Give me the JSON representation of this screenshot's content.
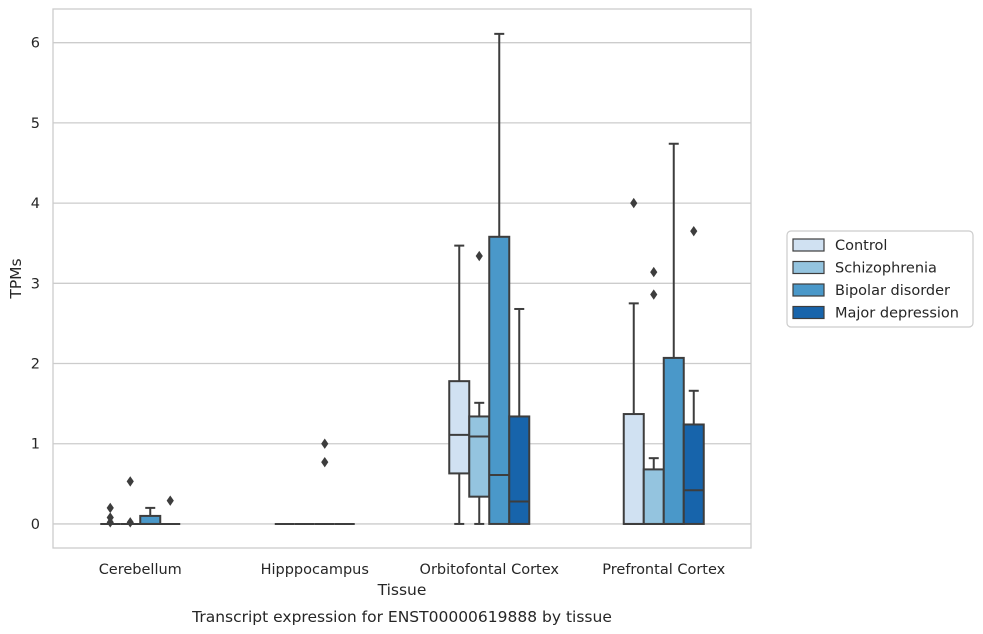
{
  "caption": "Transcript expression for ENST00000619888 by tissue",
  "chart_data": {
    "type": "box",
    "title": "",
    "xlabel": "Tissue",
    "ylabel": "TPMs",
    "ylim": [
      -0.3,
      6.42
    ],
    "yticks": [
      0,
      1,
      2,
      3,
      4,
      5,
      6
    ],
    "grid": "horizontal",
    "legend_position": "right",
    "categories": [
      "Cerebellum",
      "Hipppocampus",
      "Orbitofontal Cortex",
      "Prefrontal Cortex"
    ],
    "series": [
      {
        "name": "Control",
        "color": "#d0e1f2",
        "boxes": [
          {
            "whislo": 0,
            "q1": 0,
            "med": 0,
            "q3": 0,
            "whishi": 0,
            "fliers": [
              0.2,
              0.08,
              0.02
            ]
          },
          {
            "whislo": 0,
            "q1": 0,
            "med": 0,
            "q3": 0,
            "whishi": 0,
            "fliers": []
          },
          {
            "whislo": 0,
            "q1": 0.63,
            "med": 1.11,
            "q3": 1.78,
            "whishi": 3.47,
            "fliers": []
          },
          {
            "whislo": 0,
            "q1": 0,
            "med": 0,
            "q3": 1.37,
            "whishi": 2.75,
            "fliers": [
              4.0
            ]
          }
        ]
      },
      {
        "name": "Schizophrenia",
        "color": "#94c4df",
        "boxes": [
          {
            "whislo": 0,
            "q1": 0,
            "med": 0,
            "q3": 0,
            "whishi": 0,
            "fliers": [
              0.53,
              0.02
            ]
          },
          {
            "whislo": 0,
            "q1": 0,
            "med": 0,
            "q3": 0,
            "whishi": 0,
            "fliers": []
          },
          {
            "whislo": 0,
            "q1": 0.34,
            "med": 1.09,
            "q3": 1.34,
            "whishi": 1.51,
            "fliers": [
              3.34
            ]
          },
          {
            "whislo": 0,
            "q1": 0,
            "med": 0,
            "q3": 0.68,
            "whishi": 0.82,
            "fliers": [
              3.14,
              2.86
            ]
          }
        ]
      },
      {
        "name": "Bipolar disorder",
        "color": "#4a98c9",
        "boxes": [
          {
            "whislo": 0,
            "q1": 0,
            "med": 0,
            "q3": 0.1,
            "whishi": 0.2,
            "fliers": []
          },
          {
            "whislo": 0,
            "q1": 0,
            "med": 0,
            "q3": 0,
            "whishi": 0,
            "fliers": [
              1.0,
              0.77
            ]
          },
          {
            "whislo": 0,
            "q1": 0,
            "med": 0.61,
            "q3": 3.58,
            "whishi": 6.11,
            "fliers": []
          },
          {
            "whislo": 0,
            "q1": 0,
            "med": 0,
            "q3": 2.07,
            "whishi": 4.74,
            "fliers": []
          }
        ]
      },
      {
        "name": "Major depression",
        "color": "#1764ab",
        "boxes": [
          {
            "whislo": 0,
            "q1": 0,
            "med": 0,
            "q3": 0,
            "whishi": 0,
            "fliers": [
              0.29
            ]
          },
          {
            "whislo": 0,
            "q1": 0,
            "med": 0,
            "q3": 0,
            "whishi": 0,
            "fliers": []
          },
          {
            "whislo": 0,
            "q1": 0,
            "med": 0.28,
            "q3": 1.34,
            "whishi": 2.68,
            "fliers": []
          },
          {
            "whislo": 0,
            "q1": 0,
            "med": 0.42,
            "q3": 1.24,
            "whishi": 1.66,
            "fliers": [
              3.65
            ]
          }
        ]
      }
    ]
  }
}
